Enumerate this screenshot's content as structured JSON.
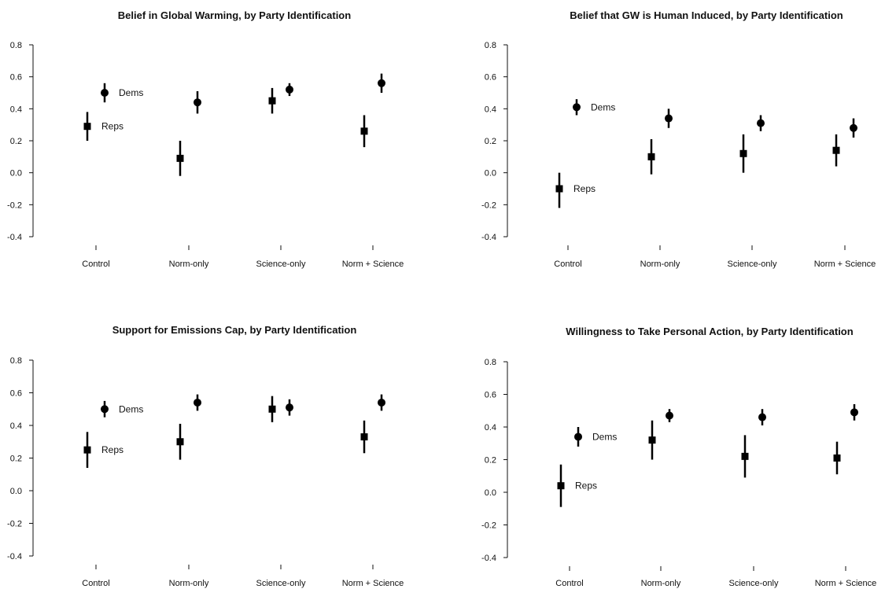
{
  "chart_data": [
    {
      "type": "scatter",
      "title": "Belief in Global Warming, by Party Identification",
      "categories": [
        "Control",
        "Norm-only",
        "Science-only",
        "Norm + Science"
      ],
      "ylim": [
        -0.4,
        0.8
      ],
      "yticks": [
        "-0.4",
        "-0.2",
        "0.0",
        "0.2",
        "0.4",
        "0.6",
        "0.8"
      ],
      "grid": false,
      "series": [
        {
          "name": "Reps",
          "marker": "square",
          "values": [
            0.29,
            0.09,
            0.45,
            0.26
          ],
          "lower": [
            0.2,
            -0.02,
            0.37,
            0.16
          ],
          "upper": [
            0.38,
            0.2,
            0.53,
            0.36
          ]
        },
        {
          "name": "Dems",
          "marker": "circle",
          "values": [
            0.5,
            0.44,
            0.52,
            0.56
          ],
          "lower": [
            0.44,
            0.37,
            0.48,
            0.5
          ],
          "upper": [
            0.56,
            0.51,
            0.56,
            0.62
          ]
        }
      ]
    },
    {
      "type": "scatter",
      "title": "Belief that GW is Human Induced, by Party Identification",
      "categories": [
        "Control",
        "Norm-only",
        "Science-only",
        "Norm + Science"
      ],
      "ylim": [
        -0.4,
        0.8
      ],
      "yticks": [
        "-0.4",
        "-0.2",
        "0.0",
        "0.2",
        "0.4",
        "0.6",
        "0.8"
      ],
      "grid": false,
      "series": [
        {
          "name": "Reps",
          "marker": "square",
          "values": [
            -0.1,
            0.1,
            0.12,
            0.14
          ],
          "lower": [
            -0.22,
            -0.01,
            0.0,
            0.04
          ],
          "upper": [
            0.0,
            0.21,
            0.24,
            0.24
          ]
        },
        {
          "name": "Dems",
          "marker": "circle",
          "values": [
            0.41,
            0.34,
            0.31,
            0.28
          ],
          "lower": [
            0.36,
            0.28,
            0.26,
            0.22
          ],
          "upper": [
            0.46,
            0.4,
            0.36,
            0.34
          ]
        }
      ]
    },
    {
      "type": "scatter",
      "title": "Support for Emissions Cap, by Party Identification",
      "categories": [
        "Control",
        "Norm-only",
        "Science-only",
        "Norm + Science"
      ],
      "ylim": [
        -0.4,
        0.8
      ],
      "yticks": [
        "-0.4",
        "-0.2",
        "0.0",
        "0.2",
        "0.4",
        "0.6",
        "0.8"
      ],
      "grid": false,
      "series": [
        {
          "name": "Reps",
          "marker": "square",
          "values": [
            0.25,
            0.3,
            0.5,
            0.33
          ],
          "lower": [
            0.14,
            0.19,
            0.42,
            0.23
          ],
          "upper": [
            0.36,
            0.41,
            0.58,
            0.43
          ]
        },
        {
          "name": "Dems",
          "marker": "circle",
          "values": [
            0.5,
            0.54,
            0.51,
            0.54
          ],
          "lower": [
            0.45,
            0.49,
            0.46,
            0.49
          ],
          "upper": [
            0.55,
            0.59,
            0.56,
            0.59
          ]
        }
      ]
    },
    {
      "type": "scatter",
      "title": "Willingness to Take Personal Action, by Party Identification",
      "categories": [
        "Control",
        "Norm-only",
        "Science-only",
        "Norm + Science"
      ],
      "ylim": [
        -0.4,
        0.8
      ],
      "yticks": [
        "-0.4",
        "-0.2",
        "0.0",
        "0.2",
        "0.4",
        "0.6",
        "0.8"
      ],
      "grid": false,
      "series": [
        {
          "name": "Reps",
          "marker": "square",
          "values": [
            0.04,
            0.32,
            0.22,
            0.21
          ],
          "lower": [
            -0.09,
            0.2,
            0.09,
            0.11
          ],
          "upper": [
            0.17,
            0.44,
            0.35,
            0.31
          ]
        },
        {
          "name": "Dems",
          "marker": "circle",
          "values": [
            0.34,
            0.47,
            0.46,
            0.49
          ],
          "lower": [
            0.28,
            0.43,
            0.41,
            0.44
          ],
          "upper": [
            0.4,
            0.51,
            0.51,
            0.54
          ]
        }
      ]
    }
  ]
}
